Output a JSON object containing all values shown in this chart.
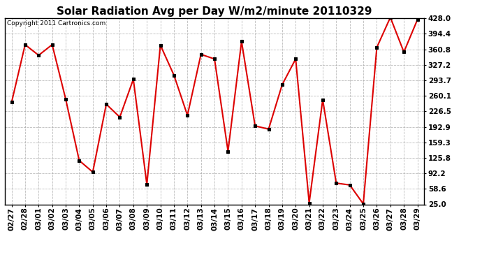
{
  "title": "Solar Radiation Avg per Day W/m2/minute 20110329",
  "copyright": "Copyright 2011 Cartronics.com",
  "labels": [
    "02/27",
    "02/28",
    "03/01",
    "03/02",
    "03/03",
    "03/04",
    "03/05",
    "03/06",
    "03/07",
    "03/08",
    "03/09",
    "03/10",
    "03/11",
    "03/12",
    "03/13",
    "03/14",
    "03/15",
    "03/16",
    "03/17",
    "03/18",
    "03/19",
    "03/20",
    "03/21",
    "03/22",
    "03/23",
    "03/24",
    "03/25",
    "03/26",
    "03/27",
    "03/28",
    "03/29"
  ],
  "values": [
    246,
    371,
    348,
    371,
    253,
    120,
    95,
    242,
    214,
    296,
    68,
    370,
    305,
    218,
    350,
    340,
    140,
    378,
    195,
    188,
    284,
    340,
    28,
    252,
    71,
    67,
    26,
    365,
    430,
    355,
    425
  ],
  "line_color": "#dd0000",
  "marker_color": "#000000",
  "bg_color": "#ffffff",
  "plot_bg_color": "#ffffff",
  "grid_color": "#aaaaaa",
  "ylim_min": 25.0,
  "ylim_max": 428.0,
  "ytick_values": [
    25.0,
    58.6,
    92.2,
    125.8,
    159.3,
    192.9,
    226.5,
    260.1,
    293.7,
    327.2,
    360.8,
    394.4,
    428.0
  ],
  "title_fontsize": 11,
  "copyright_fontsize": 6.5,
  "tick_fontsize": 7.5,
  "ytick_labels": [
    "25.0",
    "58.6",
    "92.2",
    "125.8",
    "159.3",
    "192.9",
    "226.5",
    "260.1",
    "293.7",
    "327.2",
    "360.8",
    "394.4",
    "428.0"
  ]
}
